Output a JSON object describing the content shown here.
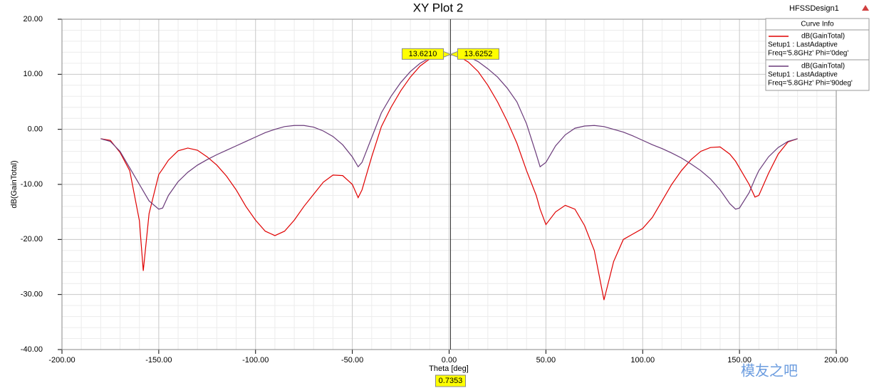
{
  "chart_data": {
    "type": "line",
    "title": "XY Plot 2",
    "design_name": "HFSSDesign1",
    "legend_title": "Curve Info",
    "x_label": "Theta [deg]",
    "y_label": "dB(GainTotal)",
    "watermark": "模友之吧",
    "grid": true,
    "legend": "top-right",
    "xlim": [
      -200,
      200
    ],
    "ylim": [
      -40,
      20
    ],
    "xticks": [
      {
        "value": -200,
        "label": "-200.00"
      },
      {
        "value": -150,
        "label": "-150.00"
      },
      {
        "value": -100,
        "label": "-100.00"
      },
      {
        "value": -50,
        "label": "-50.00"
      },
      {
        "value": 0,
        "label": "0.00"
      },
      {
        "value": 50,
        "label": "50.00"
      },
      {
        "value": 100,
        "label": "100.00"
      },
      {
        "value": 150,
        "label": "150.00"
      },
      {
        "value": 200,
        "label": "200.00"
      }
    ],
    "yticks": [
      {
        "value": -40,
        "label": "-40.00"
      },
      {
        "value": -30,
        "label": "-30.00"
      },
      {
        "value": -20,
        "label": "-20.00"
      },
      {
        "value": -10,
        "label": "-10.00"
      },
      {
        "value": 0,
        "label": "0.00"
      },
      {
        "value": 10,
        "label": "10.00"
      },
      {
        "value": 20,
        "label": "20.00"
      }
    ],
    "x": [
      -180,
      -175,
      -170,
      -165,
      -160,
      -158,
      -155,
      -150,
      -148,
      -145,
      -140,
      -135,
      -130,
      -125,
      -120,
      -115,
      -110,
      -105,
      -100,
      -95,
      -90,
      -85,
      -80,
      -75,
      -70,
      -65,
      -60,
      -55,
      -50,
      -47,
      -45,
      -40,
      -35,
      -30,
      -25,
      -20,
      -15,
      -10,
      -5,
      0,
      5,
      10,
      15,
      20,
      25,
      30,
      35,
      40,
      45,
      47,
      50,
      55,
      60,
      65,
      70,
      75,
      80,
      85,
      90,
      95,
      100,
      105,
      110,
      115,
      120,
      125,
      130,
      135,
      140,
      145,
      148,
      150,
      155,
      158,
      160,
      165,
      170,
      175,
      180
    ],
    "series": [
      {
        "name": "dB(GainTotal)",
        "setup": "Setup1 : LastAdaptive",
        "freq": "Freq='5.8GHz' Phi='0deg'",
        "color": "#e00000",
        "values": [
          -1.7,
          -2.0,
          -4.2,
          -7.5,
          -16.6,
          -25.7,
          -15.3,
          -8.2,
          -7.2,
          -5.6,
          -3.9,
          -3.4,
          -3.8,
          -5,
          -6.5,
          -8.5,
          -11,
          -14,
          -16.5,
          -18.5,
          -19.3,
          -18.5,
          -16.5,
          -14,
          -11.8,
          -9.6,
          -8.3,
          -8.4,
          -10,
          -12.4,
          -11,
          -5,
          0.5,
          4,
          7,
          9.5,
          11.5,
          12.8,
          13.5,
          13.6,
          13.3,
          12.2,
          10.5,
          8,
          5,
          1.5,
          -2.5,
          -7.5,
          -12,
          -14.5,
          -17.3,
          -15,
          -13.8,
          -14.5,
          -17.5,
          -22,
          -31,
          -24,
          -20,
          -19,
          -18,
          -16,
          -13,
          -10,
          -7.5,
          -5.5,
          -4,
          -3.3,
          -3.2,
          -4.5,
          -5.8,
          -7,
          -10,
          -12.3,
          -12,
          -8,
          -4.5,
          -2.3,
          -1.7
        ]
      },
      {
        "name": "dB(GainTotal)",
        "setup": "Setup1 : LastAdaptive",
        "freq": "Freq='5.8GHz' Phi='90deg'",
        "color": "#6a3a7a",
        "values": [
          -1.7,
          -2.2,
          -4,
          -7,
          -10,
          -11.2,
          -13,
          -14.5,
          -14.3,
          -12,
          -9.5,
          -7.8,
          -6.5,
          -5.5,
          -4.6,
          -3.8,
          -3,
          -2.2,
          -1.4,
          -0.6,
          0,
          0.5,
          0.7,
          0.7,
          0.4,
          -0.3,
          -1.3,
          -2.8,
          -5,
          -6.8,
          -6,
          -1.5,
          3,
          6,
          8.5,
          10.5,
          12,
          13,
          13.5,
          13.6,
          13.6,
          13.2,
          12.3,
          11,
          9.5,
          7.5,
          5,
          1,
          -4.5,
          -6.8,
          -6,
          -3,
          -1,
          0.2,
          0.6,
          0.7,
          0.5,
          0,
          -0.5,
          -1.2,
          -2,
          -2.8,
          -3.5,
          -4.3,
          -5.2,
          -6.3,
          -7.5,
          -9,
          -11,
          -13.5,
          -14.5,
          -14.3,
          -11.5,
          -9,
          -7.5,
          -5,
          -3.3,
          -2.2,
          -1.7
        ]
      }
    ],
    "marker": {
      "x": 0.7353,
      "labels": [
        {
          "value": 13.621,
          "label": "13.6210"
        },
        {
          "value": 13.6252,
          "label": "13.6252"
        }
      ]
    }
  }
}
